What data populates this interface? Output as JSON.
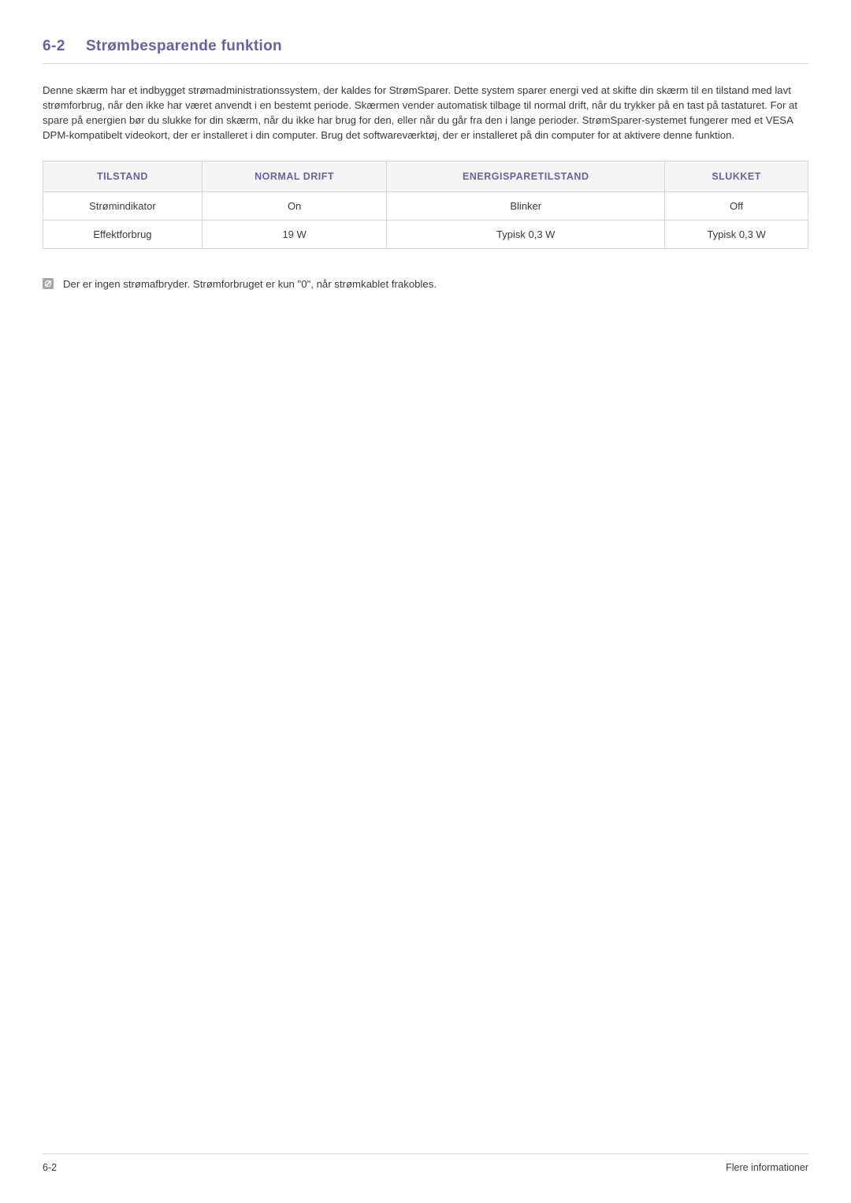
{
  "heading": {
    "number": "6-2",
    "title": "Strømbesparende funktion"
  },
  "paragraph": "Denne skærm har et indbygget strømadministrationssystem, der kaldes for StrømSparer. Dette system sparer energi ved at skifte din skærm til en tilstand med lavt strømforbrug, når den ikke har været anvendt i en bestemt periode. Skærmen vender automatisk tilbage til normal drift, når du trykker på en tast på tastaturet. For at spare på energien bør du slukke for din skærm, når du ikke har brug for den, eller når du går fra den i lange perioder. StrømSparer-systemet fungerer med et VESA DPM-kompatibelt videokort, der er installeret i din computer. Brug det softwareværktøj, der er installeret på din computer for at aktivere denne funktion.",
  "table": {
    "headers": [
      "TILSTAND",
      "NORMAL DRIFT",
      "ENERGISPARETILSTAND",
      "SLUKKET"
    ],
    "rows": [
      [
        "Strømindikator",
        "On",
        "Blinker",
        "Off"
      ],
      [
        "Effektforbrug",
        "19 W",
        "Typisk 0,3 W",
        "Typisk 0,3 W"
      ]
    ],
    "header_bg": "#f5f5f5",
    "header_color": "#6b5fa8",
    "border_color": "#d4d4d4",
    "cell_color": "#3a3a3a"
  },
  "note": "Der er ingen strømafbryder. Strømforbruget er kun \"0\", når strømkablet frakobles.",
  "footer": {
    "left": "6-2",
    "right": "Flere informationer"
  },
  "colors": {
    "accent": "#6b5fa8",
    "text": "#3a3a3a",
    "rule": "#d8d8d8",
    "background": "#ffffff"
  }
}
